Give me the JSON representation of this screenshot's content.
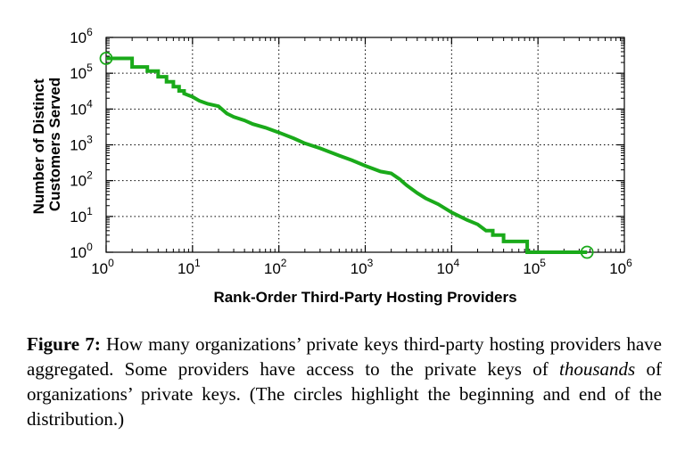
{
  "chart_data": {
    "type": "line",
    "xscale": "log",
    "yscale": "log",
    "xlim": [
      1,
      1000000
    ],
    "ylim": [
      1,
      1000000
    ],
    "grid": true,
    "xlabel": "Rank-Order Third-Party Hosting Providers",
    "ylabel_lines": [
      "Number of Distinct",
      "Customers Served"
    ],
    "x_ticks": [
      {
        "base": "10",
        "exp": "0",
        "value": 1
      },
      {
        "base": "10",
        "exp": "1",
        "value": 10
      },
      {
        "base": "10",
        "exp": "2",
        "value": 100
      },
      {
        "base": "10",
        "exp": "3",
        "value": 1000
      },
      {
        "base": "10",
        "exp": "4",
        "value": 10000
      },
      {
        "base": "10",
        "exp": "5",
        "value": 100000
      },
      {
        "base": "10",
        "exp": "6",
        "value": 1000000
      }
    ],
    "y_ticks": [
      {
        "base": "10",
        "exp": "0",
        "value": 1
      },
      {
        "base": "10",
        "exp": "1",
        "value": 10
      },
      {
        "base": "10",
        "exp": "2",
        "value": 100
      },
      {
        "base": "10",
        "exp": "3",
        "value": 1000
      },
      {
        "base": "10",
        "exp": "4",
        "value": 10000
      },
      {
        "base": "10",
        "exp": "5",
        "value": 100000
      },
      {
        "base": "10",
        "exp": "6",
        "value": 1000000
      }
    ],
    "series": [
      {
        "color": "#1aaa1a",
        "points": [
          [
            1,
            260000
          ],
          [
            2,
            260000
          ],
          [
            2,
            150000
          ],
          [
            3,
            150000
          ],
          [
            3,
            115000
          ],
          [
            4,
            115000
          ],
          [
            4,
            80000
          ],
          [
            5,
            80000
          ],
          [
            5,
            58000
          ],
          [
            6,
            58000
          ],
          [
            6,
            42000
          ],
          [
            7,
            42000
          ],
          [
            7,
            32000
          ],
          [
            8,
            32000
          ],
          [
            8,
            27000
          ],
          [
            10,
            22000
          ],
          [
            12,
            17000
          ],
          [
            15,
            14000
          ],
          [
            20,
            12000
          ],
          [
            25,
            7500
          ],
          [
            30,
            6000
          ],
          [
            40,
            4800
          ],
          [
            50,
            3800
          ],
          [
            70,
            3000
          ],
          [
            100,
            2200
          ],
          [
            150,
            1500
          ],
          [
            200,
            1100
          ],
          [
            300,
            800
          ],
          [
            500,
            500
          ],
          [
            700,
            370
          ],
          [
            1000,
            260
          ],
          [
            1500,
            180
          ],
          [
            2000,
            160
          ],
          [
            2500,
            110
          ],
          [
            3000,
            75
          ],
          [
            4000,
            45
          ],
          [
            5000,
            32
          ],
          [
            7000,
            22
          ],
          [
            10000,
            13
          ],
          [
            15000,
            8
          ],
          [
            20000,
            6
          ],
          [
            25000,
            4
          ],
          [
            30000,
            4
          ],
          [
            30000,
            3
          ],
          [
            40000,
            3
          ],
          [
            40000,
            2
          ],
          [
            75000,
            2
          ],
          [
            75000,
            1
          ],
          [
            370000,
            1
          ]
        ],
        "highlight_points": [
          [
            1,
            260000
          ],
          [
            370000,
            1
          ]
        ]
      }
    ]
  },
  "caption": {
    "label": "Figure 7:",
    "text_before": " How many organizations’ private keys third-party hosting providers have aggregated. Some providers have access to the private keys of ",
    "emphasis": "thousands",
    "text_after": " of organizations’ private keys. (The circles highlight the beginning and end of the distribution.)"
  },
  "colors": {
    "series": "#1aaa1a",
    "grid": "#000000",
    "axis": "#000000"
  }
}
